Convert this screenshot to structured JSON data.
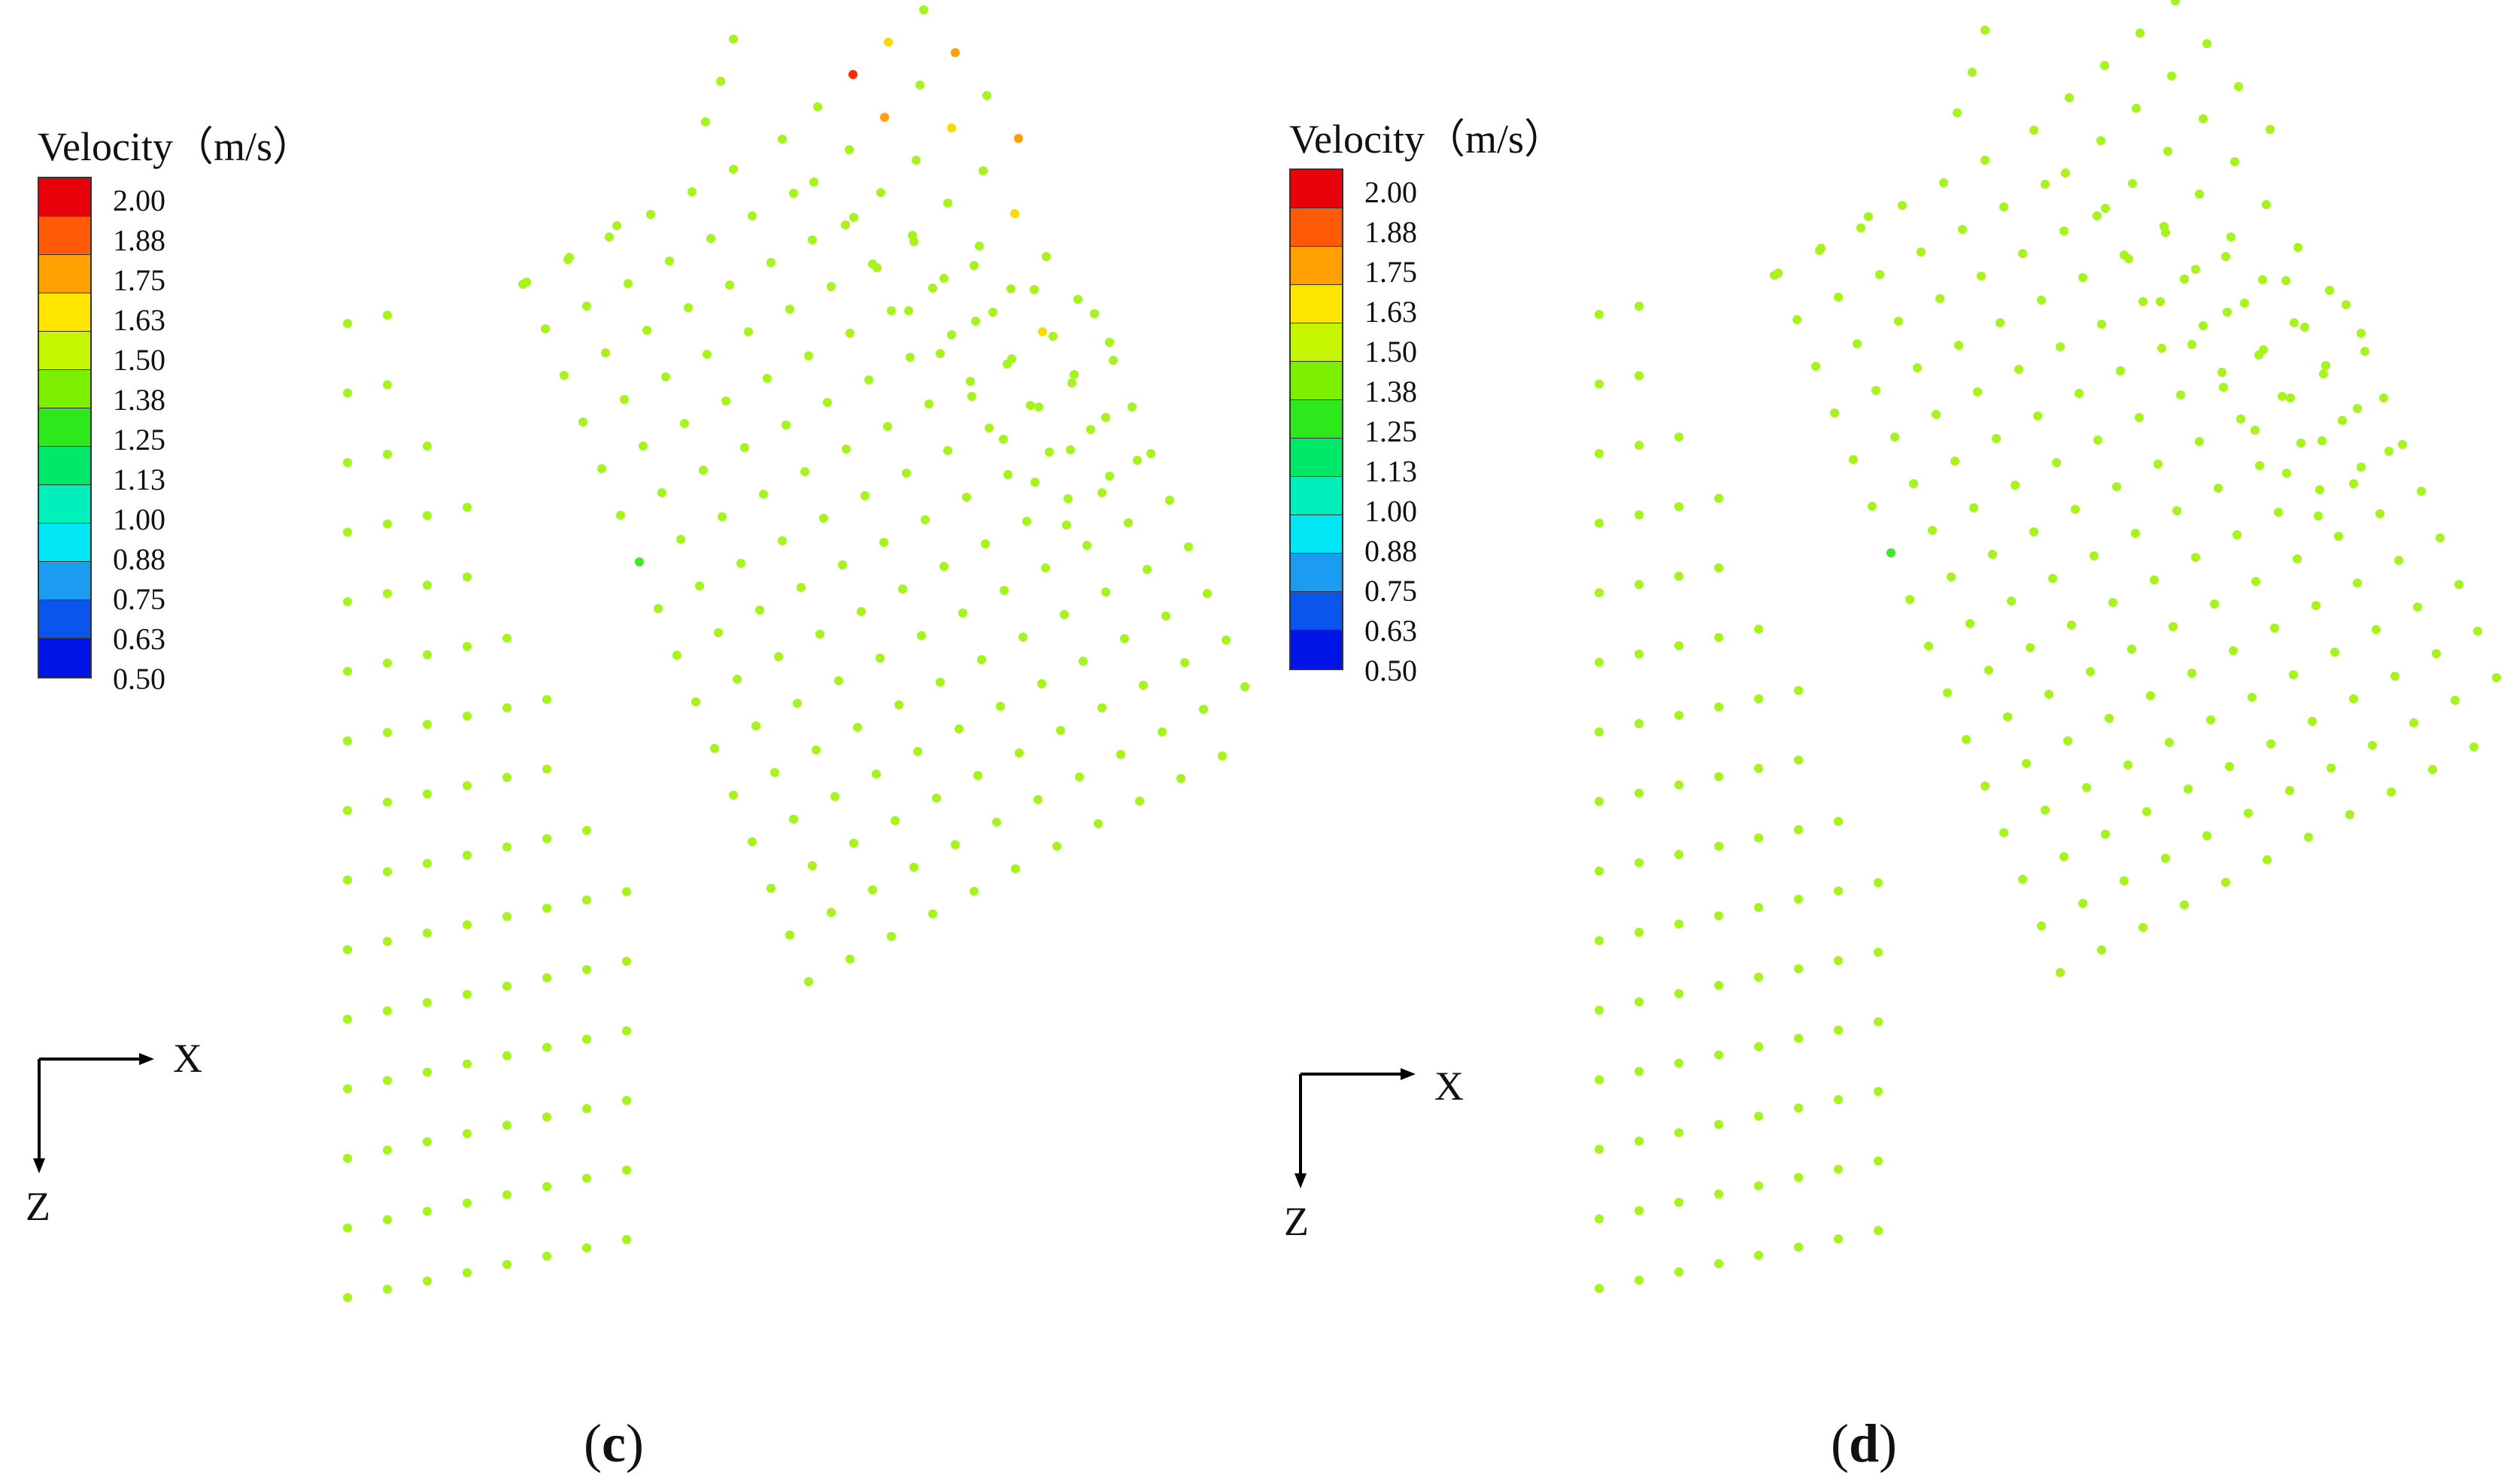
{
  "legend": {
    "title": "Velocity（m/s）",
    "ticks": [
      "2.00",
      "1.88",
      "1.75",
      "1.63",
      "1.50",
      "1.38",
      "1.25",
      "1.13",
      "1.00",
      "0.88",
      "0.75",
      "0.63",
      "0.50"
    ],
    "colors": [
      "#e8000b",
      "#ff5a08",
      "#ff9f00",
      "#ffe600",
      "#c6f500",
      "#7cf000",
      "#2de81a",
      "#00e86a",
      "#00f0bc",
      "#00e6f5",
      "#1c9cf0",
      "#0a55ec",
      "#0014e6"
    ]
  },
  "axes_indicator": {
    "x_label": "X",
    "z_label": "Z"
  },
  "dot_colors": {
    "normal": "#a6f51a",
    "green": "#43e52a",
    "yellow": "#ffd800",
    "orange": "#ffa000",
    "red": "#ff2a00"
  },
  "panels": [
    {
      "caption_letter": "c",
      "caption_open": "(",
      "caption_close": ")"
    },
    {
      "caption_letter": "d",
      "caption_open": "(",
      "caption_close": ")"
    }
  ],
  "chart_data": [
    {
      "type": "scatter",
      "title": "",
      "colorbar": {
        "title": "Velocity（m/s）",
        "min": 0.5,
        "max": 2.0
      },
      "xlabel": "X",
      "ylabel": "Z",
      "points_c": "see script grid",
      "note_hot": [
        {
          "row": 0,
          "col": 2,
          "velocity": 2.0
        },
        {
          "row": 1,
          "col": 2,
          "velocity": 1.88
        },
        {
          "row": 0,
          "col": 3,
          "velocity": 1.75
        },
        {
          "row": 1,
          "col": 6,
          "velocity": 1.88
        },
        {
          "row": 4,
          "col": 6,
          "velocity": 1.88
        },
        {
          "row": 5,
          "col": 6,
          "velocity": 1.8
        },
        {
          "row": 4,
          "col": 7,
          "velocity": 1.75
        },
        {
          "row": 6,
          "col": 7,
          "velocity": 1.75
        }
      ]
    },
    {
      "type": "scatter",
      "title": "",
      "colorbar": {
        "title": "Velocity（m/s）",
        "min": 0.5,
        "max": 2.0
      },
      "xlabel": "X",
      "ylabel": "Z"
    }
  ]
}
